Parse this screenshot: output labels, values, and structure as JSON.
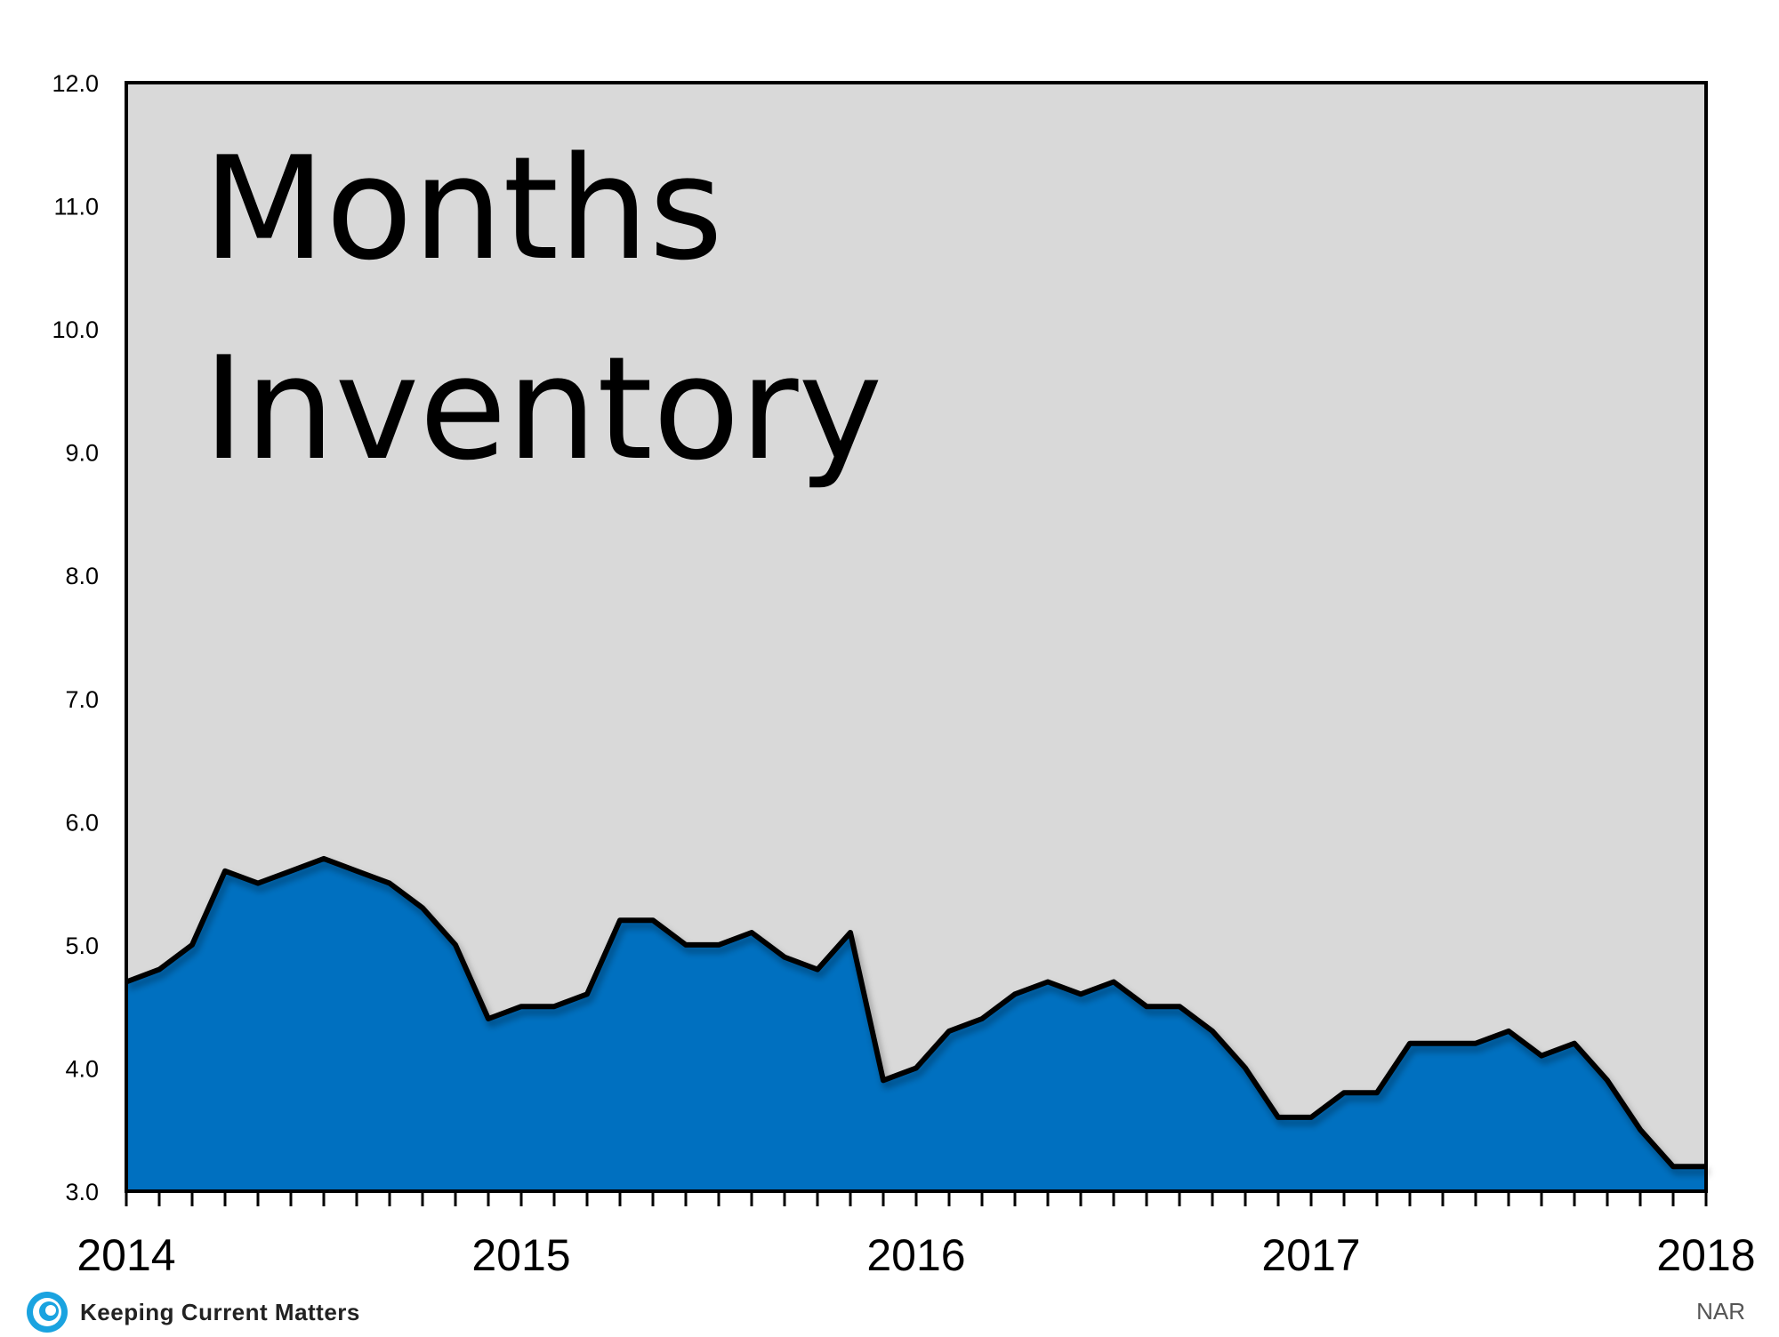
{
  "colors": {
    "plot_bg": "#d9d9d9",
    "area_fill": "#0070c0",
    "line": "#000000"
  },
  "footer": {
    "brand": "Keeping Current Matters",
    "logo_icon": "kcm-swirl-icon",
    "source": "NAR"
  },
  "chart_data": {
    "type": "area",
    "title_lines": [
      "Months",
      "Inventory"
    ],
    "xlabel": "",
    "ylabel": "",
    "ylim": [
      3.0,
      12.0
    ],
    "y_ticks": [
      "3.0",
      "4.0",
      "5.0",
      "6.0",
      "7.0",
      "8.0",
      "9.0",
      "10.0",
      "11.0",
      "12.0"
    ],
    "x_tick_labels": [
      "2014",
      "2015",
      "2016",
      "2017",
      "2018"
    ],
    "grid": false,
    "series": [
      {
        "values": [
          4.7,
          4.8,
          5.0,
          5.6,
          5.5,
          5.6,
          5.7,
          5.6,
          5.5,
          5.3,
          5.0,
          4.4,
          4.5,
          4.5,
          4.6,
          5.2,
          5.2,
          5.0,
          5.0,
          5.1,
          4.9,
          4.8,
          5.1,
          3.9,
          4.0,
          4.3,
          4.4,
          4.6,
          4.7,
          4.6,
          4.7,
          4.5,
          4.5,
          4.3,
          4.0,
          3.6,
          3.6,
          3.8,
          3.8,
          4.2,
          4.2,
          4.2,
          4.3,
          4.1,
          4.2,
          3.9,
          3.5,
          3.2
        ]
      }
    ]
  }
}
